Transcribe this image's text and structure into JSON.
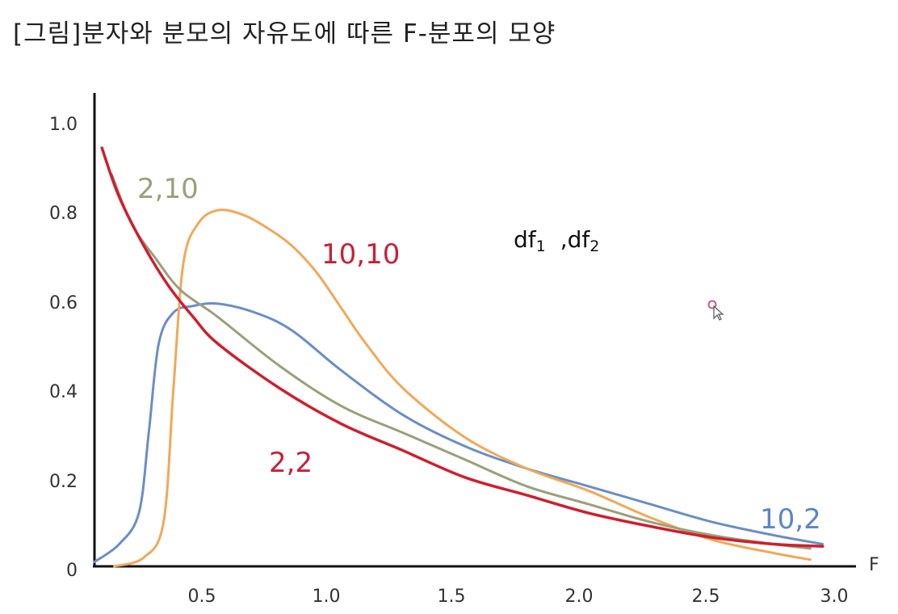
{
  "title": "[그림]분자와 분모의 자유도에 따른 F-분포의 모양",
  "chart_data": {
    "type": "line",
    "xlabel": "F",
    "xlim": [
      0,
      3.0
    ],
    "ylim": [
      0,
      1.0
    ],
    "x_ticks": [
      "0.5",
      "1.0",
      "1.5",
      "2.0",
      "2.5",
      "3.0"
    ],
    "y_ticks": [
      "0",
      "0.2",
      "0.4",
      "0.6",
      "0.8",
      "1.0"
    ],
    "annotation": {
      "prefix": "df",
      "sub1": "1",
      "sep": ",df",
      "sub2": "2"
    },
    "series": [
      {
        "name": "2,2",
        "color": "#cc2030",
        "points": [
          [
            0.03,
            0.94
          ],
          [
            0.1,
            0.83
          ],
          [
            0.2,
            0.72
          ],
          [
            0.3,
            0.63
          ],
          [
            0.4,
            0.56
          ],
          [
            0.5,
            0.5
          ],
          [
            0.75,
            0.4
          ],
          [
            1.0,
            0.32
          ],
          [
            1.25,
            0.26
          ],
          [
            1.5,
            0.2
          ],
          [
            1.75,
            0.16
          ],
          [
            2.0,
            0.12
          ],
          [
            2.25,
            0.09
          ],
          [
            2.5,
            0.065
          ],
          [
            2.75,
            0.05
          ],
          [
            2.95,
            0.045
          ]
        ]
      },
      {
        "name": "2,10",
        "color": "#9aa07a",
        "points": [
          [
            0.07,
            0.88
          ],
          [
            0.15,
            0.77
          ],
          [
            0.25,
            0.69
          ],
          [
            0.35,
            0.62
          ],
          [
            0.5,
            0.56
          ],
          [
            0.75,
            0.45
          ],
          [
            1.0,
            0.36
          ],
          [
            1.25,
            0.3
          ],
          [
            1.5,
            0.24
          ],
          [
            1.75,
            0.18
          ],
          [
            2.0,
            0.14
          ],
          [
            2.25,
            0.1
          ],
          [
            2.5,
            0.07
          ],
          [
            2.75,
            0.05
          ],
          [
            2.9,
            0.04
          ]
        ]
      },
      {
        "name": "10,10",
        "color": "#f0a85a",
        "points": [
          [
            0.08,
            0.0
          ],
          [
            0.2,
            0.02
          ],
          [
            0.28,
            0.1
          ],
          [
            0.32,
            0.4
          ],
          [
            0.36,
            0.68
          ],
          [
            0.42,
            0.77
          ],
          [
            0.5,
            0.8
          ],
          [
            0.6,
            0.79
          ],
          [
            0.7,
            0.76
          ],
          [
            0.8,
            0.72
          ],
          [
            0.9,
            0.66
          ],
          [
            1.0,
            0.58
          ],
          [
            1.1,
            0.5
          ],
          [
            1.25,
            0.4
          ],
          [
            1.5,
            0.29
          ],
          [
            1.75,
            0.22
          ],
          [
            2.0,
            0.17
          ],
          [
            2.25,
            0.11
          ],
          [
            2.5,
            0.06
          ],
          [
            2.75,
            0.03
          ],
          [
            2.9,
            0.015
          ]
        ]
      },
      {
        "name": "10,2",
        "color": "#6b8ec4",
        "points": [
          [
            0.0,
            0.01
          ],
          [
            0.1,
            0.05
          ],
          [
            0.18,
            0.12
          ],
          [
            0.22,
            0.3
          ],
          [
            0.26,
            0.5
          ],
          [
            0.32,
            0.57
          ],
          [
            0.4,
            0.585
          ],
          [
            0.5,
            0.59
          ],
          [
            0.65,
            0.57
          ],
          [
            0.8,
            0.53
          ],
          [
            1.0,
            0.44
          ],
          [
            1.25,
            0.34
          ],
          [
            1.5,
            0.27
          ],
          [
            1.75,
            0.22
          ],
          [
            2.0,
            0.18
          ],
          [
            2.25,
            0.14
          ],
          [
            2.5,
            0.1
          ],
          [
            2.75,
            0.07
          ],
          [
            2.95,
            0.05
          ]
        ]
      }
    ]
  }
}
